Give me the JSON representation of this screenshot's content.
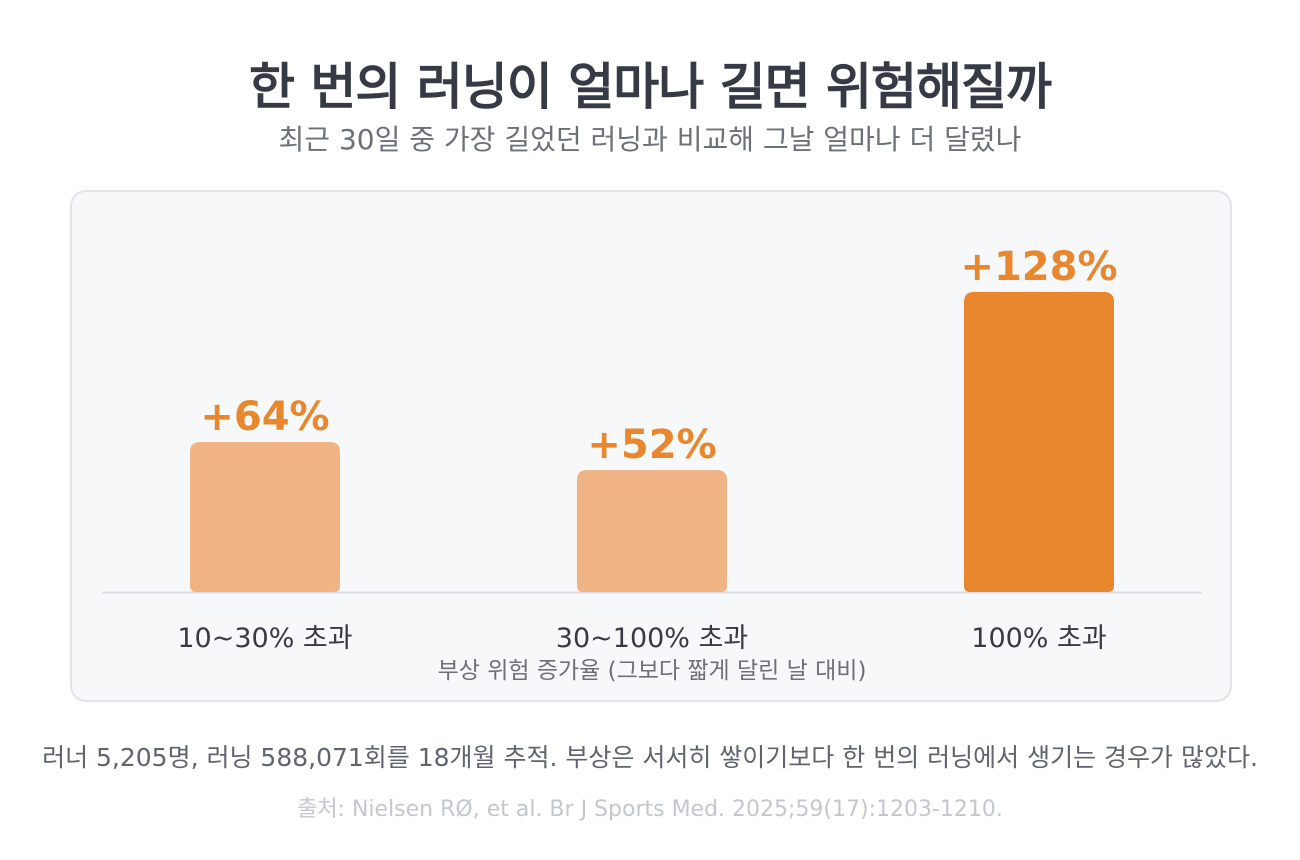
{
  "header": {
    "title": "한 번의 러닝이 얼마나 길면 위험해질까",
    "subtitle": "최근 30일 중 가장 길었던 러닝과 비교해 그날 얼마나 더 달렸나"
  },
  "chart_data": {
    "type": "bar",
    "categories": [
      "10~30% 초과",
      "30~100% 초과",
      "100% 초과"
    ],
    "values": [
      64,
      52,
      128
    ],
    "value_labels": [
      "+64%",
      "+52%",
      "+128%"
    ],
    "xlabel": "부상 위험 증가율 (그보다 짧게 달린 날 대비)",
    "ylabel": "",
    "ylim": [
      0,
      128
    ],
    "grid": false,
    "legend": "none",
    "colors": {
      "light_bar": "#f0b383",
      "highlight_bar": "#e8872e",
      "value_label": "#e8872e",
      "baseline": "#dcdfe5"
    },
    "highlight_index": 2
  },
  "footer": {
    "note": "러너 5,205명, 러닝 588,071회를 18개월 추적. 부상은 서서히 쌓이기보다 한 번의 러닝에서 생기는 경우가 많았다.",
    "source": "출처: Nielsen RØ, et al. Br J Sports Med. 2025;59(17):1203-1210."
  }
}
